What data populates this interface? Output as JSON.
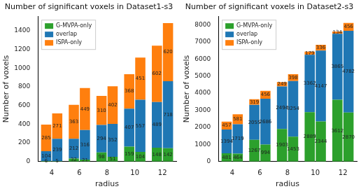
{
  "chart_data": [
    {
      "type": "bar",
      "title": "Number of significant voxels in Dataset1-s3",
      "x_label": "radius",
      "y_label": "Number of voxels",
      "categories": [
        "4",
        "6",
        "8",
        "10",
        "12"
      ],
      "stacked": true,
      "data_labels": true,
      "legend": "upper left",
      "grid": false,
      "ylim": [
        0,
        1554
      ],
      "yticks": [
        0,
        200,
        400,
        600,
        800,
        1000,
        1200,
        1400
      ],
      "series": [
        {
          "name": "G-MVPA-only",
          "color": "#2ca02c",
          "values": [
            [
              6,
              5
            ],
            [
              32,
              21
            ],
            [
              98,
              51
            ],
            [
              159,
              104
            ],
            [
              148,
              142
            ]
          ]
        },
        {
          "name": "overlap",
          "color": "#1f77b4",
          "values": [
            [
              104,
              239
            ],
            [
              212,
              316
            ],
            [
              294,
              352
            ],
            [
              407,
              557
            ],
            [
              489,
              718
            ]
          ]
        },
        {
          "name": "ISPA-only",
          "color": "#ff7f0e",
          "values": [
            [
              285,
              271
            ],
            [
              363,
              449
            ],
            [
              310,
              402
            ],
            [
              368,
              451
            ],
            [
              602,
              620
            ]
          ]
        }
      ]
    },
    {
      "type": "bar",
      "title": "Number of significant voxels in Dataset2-s3",
      "x_label": "radius",
      "y_label": "Number of voxels",
      "categories": [
        "4",
        "6",
        "8",
        "10",
        "12"
      ],
      "stacked": true,
      "data_labels": true,
      "legend": "upper left",
      "grid": false,
      "ylim": [
        0,
        8500
      ],
      "yticks": [
        0,
        1000,
        2000,
        3000,
        4000,
        5000,
        6000,
        7000,
        8000
      ],
      "series": [
        {
          "name": "G-MVPA-only",
          "color": "#2ca02c",
          "values": [
            [
              481,
              464
            ],
            [
              1267,
              994
            ],
            [
              1903,
              1453
            ],
            [
              2889,
              2344
            ],
            [
              3612,
              2870
            ]
          ]
        },
        {
          "name": "overlap",
          "color": "#1f77b4",
          "values": [
            [
              1394,
              1719
            ],
            [
              2055,
              2686
            ],
            [
              2494,
              3254
            ],
            [
              3362,
              4147
            ],
            [
              3865,
              4782
            ]
          ]
        },
        {
          "name": "ISPA-only",
          "color": "#ff7f0e",
          "values": [
            [
              457,
              581
            ],
            [
              319,
              456
            ],
            [
              249,
              398
            ],
            [
              179,
              336
            ],
            [
              134,
              456
            ]
          ]
        }
      ]
    }
  ]
}
